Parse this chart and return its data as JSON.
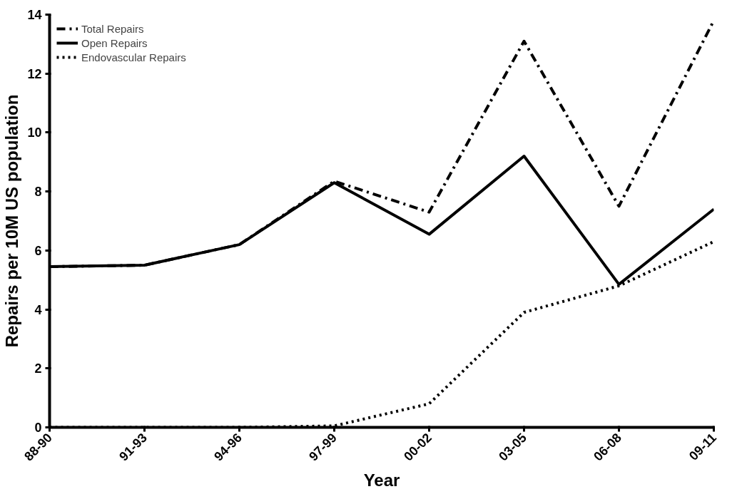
{
  "chart_data": {
    "type": "line",
    "xlabel": "Year",
    "ylabel": "Repairs per 10M US population",
    "categories": [
      "88-90",
      "91-93",
      "94-96",
      "97-99",
      "00-02",
      "03-05",
      "06-08",
      "09-11"
    ],
    "series": [
      {
        "name": "Total Repairs",
        "color": "#000000",
        "line_style": "dashed",
        "values": [
          5.45,
          5.5,
          6.2,
          8.35,
          7.3,
          13.1,
          7.5,
          13.8
        ]
      },
      {
        "name": "Open Repairs",
        "color": "#000000",
        "line_style": "solid",
        "values": [
          5.45,
          5.5,
          6.2,
          8.3,
          6.55,
          9.2,
          4.85,
          7.4
        ]
      },
      {
        "name": "Endovascular Repairs",
        "color": "#000000",
        "line_style": "dotted",
        "values": [
          0,
          0,
          0,
          0.05,
          0.8,
          3.9,
          4.8,
          6.3
        ]
      }
    ],
    "ylim": [
      0,
      14
    ],
    "yticks": [
      0,
      2,
      4,
      6,
      8,
      10,
      12,
      14
    ],
    "grid": false,
    "legend": "top left",
    "marker": "none"
  }
}
